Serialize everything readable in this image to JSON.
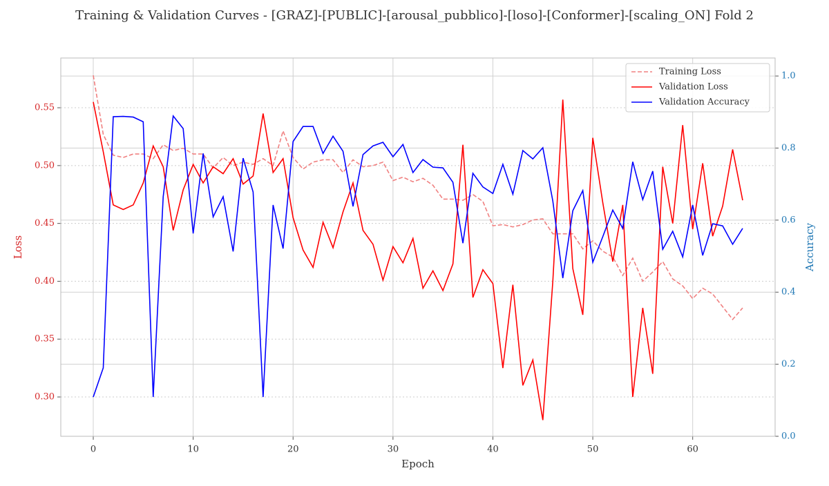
{
  "chart_data": {
    "type": "line",
    "title": "Training & Validation Curves - [GRAZ]-[PUBLIC]-[arousal_pubblico]-[loso]-[Conformer]-[scaling_ON] Fold 2",
    "x_label": "Epoch",
    "y_label": "Loss",
    "y2_label": "Accuracy",
    "x": [
      0,
      1,
      2,
      3,
      4,
      5,
      6,
      7,
      8,
      9,
      10,
      11,
      12,
      13,
      14,
      15,
      16,
      17,
      18,
      19,
      20,
      21,
      22,
      23,
      24,
      25,
      26,
      27,
      28,
      29,
      30,
      31,
      32,
      33,
      34,
      35,
      36,
      37,
      38,
      39,
      40,
      41,
      42,
      43,
      44,
      45,
      46,
      47,
      48,
      49,
      50,
      51,
      52,
      53,
      54,
      55,
      56,
      57,
      58,
      59,
      60,
      61,
      62,
      63,
      64,
      65
    ],
    "series": [
      {
        "name": "Training Loss",
        "color": "#f08080",
        "dash": true,
        "axis": "y",
        "values": [
          0.578,
          0.527,
          0.509,
          0.507,
          0.51,
          0.51,
          0.506,
          0.518,
          0.513,
          0.515,
          0.51,
          0.51,
          0.498,
          0.507,
          0.5,
          0.503,
          0.501,
          0.506,
          0.5,
          0.53,
          0.507,
          0.497,
          0.503,
          0.505,
          0.505,
          0.494,
          0.505,
          0.499,
          0.5,
          0.503,
          0.487,
          0.49,
          0.486,
          0.489,
          0.483,
          0.471,
          0.471,
          0.47,
          0.475,
          0.469,
          0.448,
          0.449,
          0.447,
          0.449,
          0.453,
          0.454,
          0.441,
          0.441,
          0.441,
          0.428,
          0.435,
          0.426,
          0.421,
          0.405,
          0.42,
          0.4,
          0.408,
          0.417,
          0.402,
          0.396,
          0.385,
          0.394,
          0.389,
          0.378,
          0.367,
          0.377
        ]
      },
      {
        "name": "Validation Loss",
        "color": "#ff0000",
        "dash": false,
        "axis": "y",
        "values": [
          0.555,
          0.512,
          0.466,
          0.462,
          0.466,
          0.485,
          0.517,
          0.499,
          0.444,
          0.479,
          0.501,
          0.485,
          0.499,
          0.493,
          0.506,
          0.484,
          0.491,
          0.545,
          0.494,
          0.506,
          0.455,
          0.427,
          0.412,
          0.451,
          0.429,
          0.46,
          0.485,
          0.444,
          0.432,
          0.401,
          0.43,
          0.416,
          0.437,
          0.394,
          0.409,
          0.392,
          0.415,
          0.518,
          0.386,
          0.41,
          0.398,
          0.325,
          0.397,
          0.31,
          0.332,
          0.28,
          0.4,
          0.557,
          0.411,
          0.371,
          0.524,
          0.468,
          0.417,
          0.466,
          0.3,
          0.377,
          0.32,
          0.499,
          0.45,
          0.535,
          0.445,
          0.502,
          0.439,
          0.465,
          0.514,
          0.47
        ]
      },
      {
        "name": "Validation Accuracy",
        "color": "#0000ff",
        "dash": false,
        "axis": "y2",
        "values": [
          0.109,
          0.19,
          0.887,
          0.888,
          0.886,
          0.873,
          0.109,
          0.665,
          0.889,
          0.854,
          0.563,
          0.785,
          0.609,
          0.665,
          0.513,
          0.772,
          0.678,
          0.109,
          0.642,
          0.521,
          0.818,
          0.86,
          0.86,
          0.785,
          0.833,
          0.791,
          0.638,
          0.782,
          0.806,
          0.816,
          0.776,
          0.81,
          0.732,
          0.768,
          0.747,
          0.745,
          0.705,
          0.536,
          0.73,
          0.692,
          0.674,
          0.755,
          0.672,
          0.793,
          0.77,
          0.801,
          0.653,
          0.439,
          0.626,
          0.682,
          0.483,
          0.554,
          0.628,
          0.577,
          0.762,
          0.657,
          0.736,
          0.519,
          0.569,
          0.498,
          0.642,
          0.502,
          0.59,
          0.584,
          0.533,
          0.577
        ]
      }
    ],
    "xlim": [
      -3.25,
      68.25
    ],
    "xticks": [
      0,
      10,
      20,
      30,
      40,
      50,
      60
    ],
    "ylim": [
      0.266,
      0.593
    ],
    "yticks": [
      {
        "value": 0.3,
        "label": "0.30"
      },
      0.35,
      {
        "value": 0.4,
        "label": "0.40"
      },
      0.45,
      {
        "value": 0.5,
        "label": "0.50"
      },
      0.55
    ],
    "y2lim": [
      0,
      1.05
    ],
    "y2ticks": [
      {
        "value": 0,
        "label": "0.0"
      },
      0.2,
      0.4,
      0.6,
      0.8,
      {
        "value": 1,
        "label": "1.0"
      }
    ],
    "y_color": "#d62728",
    "y2_color": "#1f77b4",
    "grid": true,
    "legend": "upper right"
  }
}
